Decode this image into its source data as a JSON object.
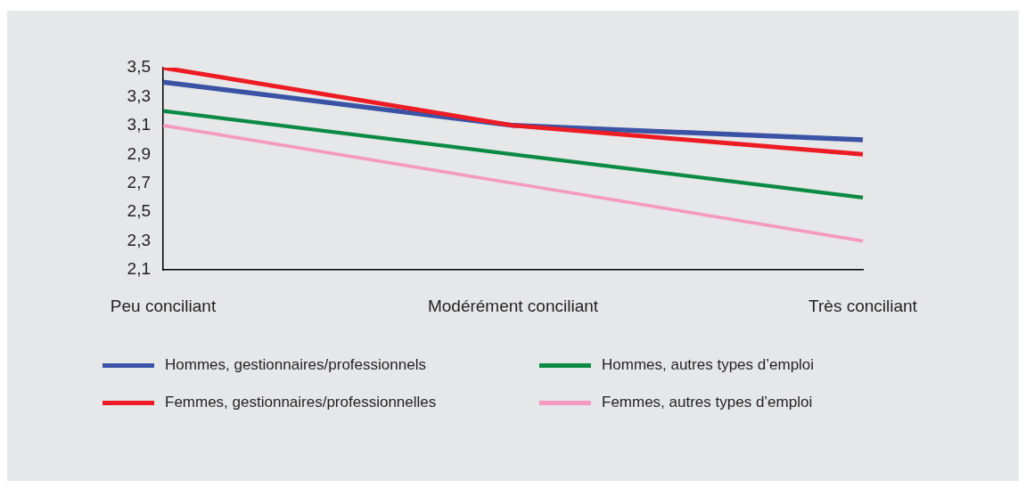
{
  "chart_data": {
    "type": "line",
    "categories": [
      "Peu conciliant",
      "Modérément conciliant",
      "Très conciliant"
    ],
    "series": [
      {
        "name": "Hommes, gestionnaires/professionnels",
        "color": "#3a53a4",
        "values": [
          3.4,
          3.1,
          3.0
        ]
      },
      {
        "name": "Femmes, gestionnaires/professionnelles",
        "color": "#ed1c24",
        "values": [
          3.5,
          3.1,
          2.9
        ]
      },
      {
        "name": "Hommes, autres types d’emploi",
        "color": "#0b8a43",
        "values": [
          3.2,
          2.9,
          2.6
        ]
      },
      {
        "name": "Femmes, autres types d’emploi",
        "color": "#f49ac1",
        "values": [
          3.1,
          2.7,
          2.3
        ]
      }
    ],
    "ylim": [
      2.1,
      3.5
    ],
    "yticks": [
      {
        "value": 2.1,
        "label": "2,1"
      },
      {
        "value": 2.3,
        "label": "2,3"
      },
      {
        "value": 2.5,
        "label": "2,5"
      },
      {
        "value": 2.7,
        "label": "2,7"
      },
      {
        "value": 2.9,
        "label": "2,9"
      },
      {
        "value": 3.1,
        "label": "3,1"
      },
      {
        "value": 3.3,
        "label": "3,3"
      },
      {
        "value": 3.5,
        "label": "3,5"
      }
    ],
    "grid": false,
    "legend": "bottom",
    "marker": "none",
    "line_style": "solid"
  }
}
